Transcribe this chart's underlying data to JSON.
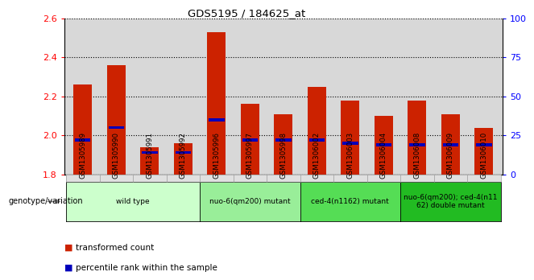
{
  "title": "GDS5195 / 184625_at",
  "samples": [
    "GSM1305989",
    "GSM1305990",
    "GSM1305991",
    "GSM1305992",
    "GSM1305996",
    "GSM1305997",
    "GSM1305998",
    "GSM1306002",
    "GSM1306003",
    "GSM1306004",
    "GSM1306008",
    "GSM1306009",
    "GSM1306010"
  ],
  "transformed_count": [
    2.26,
    2.36,
    1.94,
    1.96,
    2.53,
    2.16,
    2.11,
    2.25,
    2.18,
    2.1,
    2.18,
    2.11,
    2.04
  ],
  "percentile_rank_pct": [
    22,
    30,
    14,
    14,
    35,
    22,
    22,
    22,
    20,
    19,
    19,
    19,
    19
  ],
  "bar_base": 1.8,
  "ylim_left": [
    1.8,
    2.6
  ],
  "ylim_right": [
    0,
    100
  ],
  "yticks_left": [
    1.8,
    2.0,
    2.2,
    2.4,
    2.6
  ],
  "yticks_right": [
    0,
    25,
    50,
    75,
    100
  ],
  "bar_color": "#cc2200",
  "percentile_color": "#0000bb",
  "plot_bg_color": "#d8d8d8",
  "groups": [
    {
      "label": "wild type",
      "start": 0,
      "end": 3,
      "color": "#ccffcc"
    },
    {
      "label": "nuo-6(qm200) mutant",
      "start": 4,
      "end": 6,
      "color": "#99ee99"
    },
    {
      "label": "ced-4(n1162) mutant",
      "start": 7,
      "end": 9,
      "color": "#55dd55"
    },
    {
      "label": "nuo-6(qm200); ced-4(n11\n62) double mutant",
      "start": 10,
      "end": 12,
      "color": "#22bb22"
    }
  ],
  "xlabel_genotype": "genotype/variation"
}
